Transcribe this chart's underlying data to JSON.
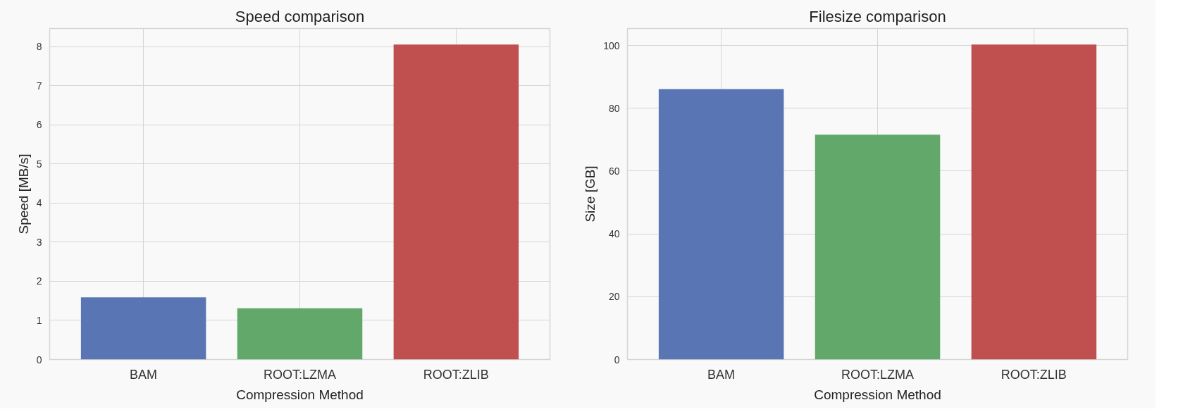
{
  "chart_data": [
    {
      "type": "bar",
      "title": "Speed comparison",
      "xlabel": "Compression Method",
      "ylabel": "Speed [MB/s]",
      "categories": [
        "BAM",
        "ROOT:LZMA",
        "ROOT:ZLIB"
      ],
      "values": [
        1.59,
        1.31,
        8.05
      ],
      "colors": [
        "#5975b4",
        "#62a86b",
        "#c0504f"
      ],
      "ylim": [
        0,
        8.46
      ],
      "yticks": [
        0,
        1,
        2,
        3,
        4,
        5,
        6,
        7,
        8
      ],
      "grid": true
    },
    {
      "type": "bar",
      "title": "Filesize comparison",
      "xlabel": "Compression Method",
      "ylabel": "Size [GB]",
      "categories": [
        "BAM",
        "ROOT:LZMA",
        "ROOT:ZLIB"
      ],
      "values": [
        86.1,
        71.6,
        100.3
      ],
      "colors": [
        "#5975b4",
        "#62a86b",
        "#c0504f"
      ],
      "ylim": [
        0,
        105.4
      ],
      "yticks": [
        0,
        20,
        40,
        60,
        80,
        100
      ],
      "grid": true
    }
  ]
}
